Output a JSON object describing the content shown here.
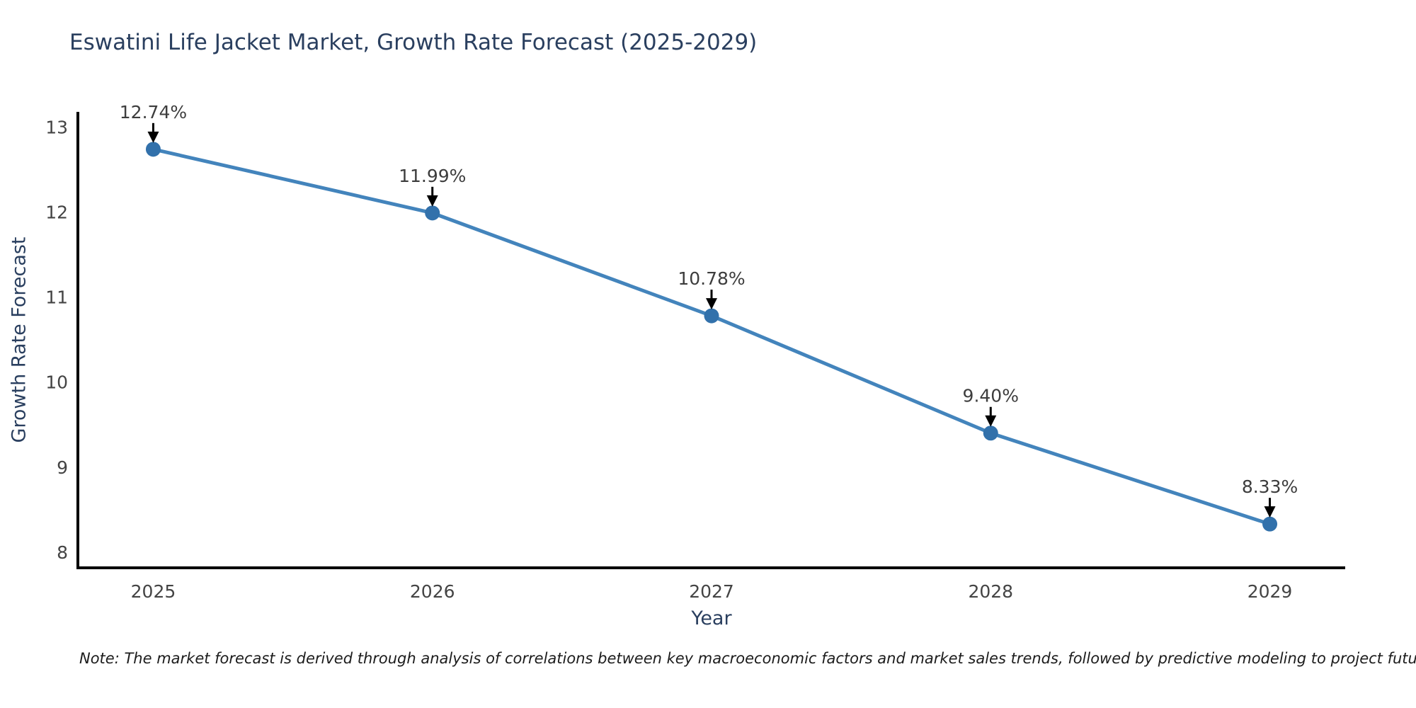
{
  "chart_data": {
    "type": "line",
    "title": "Eswatini Life Jacket Market, Growth Rate Forecast (2025-2029)",
    "xlabel": "Year",
    "ylabel": "Growth Rate Forecast",
    "categories": [
      2025,
      2026,
      2027,
      2028,
      2029
    ],
    "values": [
      12.74,
      11.99,
      10.78,
      9.4,
      8.33
    ],
    "data_labels": [
      "12.74%",
      "11.99%",
      "10.78%",
      "9.40%",
      "8.33%"
    ],
    "yticks": [
      8,
      9,
      10,
      11,
      12,
      13
    ],
    "xlim": [
      2024.73,
      2029.27
    ],
    "ylim": [
      7.815,
      13.18
    ],
    "grid": false,
    "legend_position": "none",
    "marker_shape": "circle",
    "annotation_style": "value label above point with downward black arrow",
    "colors": {
      "line": "#4384bc",
      "marker": "#3271ab",
      "arrow": "#000000",
      "label": "#3d3d3d",
      "axis": "#000000",
      "tick": "#444444",
      "title": "#2a3f5f",
      "axis_title": "#2a3f5f",
      "note": "#1c1c1c",
      "background": "#ffffff"
    },
    "note": "Note: The market forecast is derived through analysis of correlations between key macroeconomic factors and market sales trends, followed by predictive modeling to project future sales"
  }
}
